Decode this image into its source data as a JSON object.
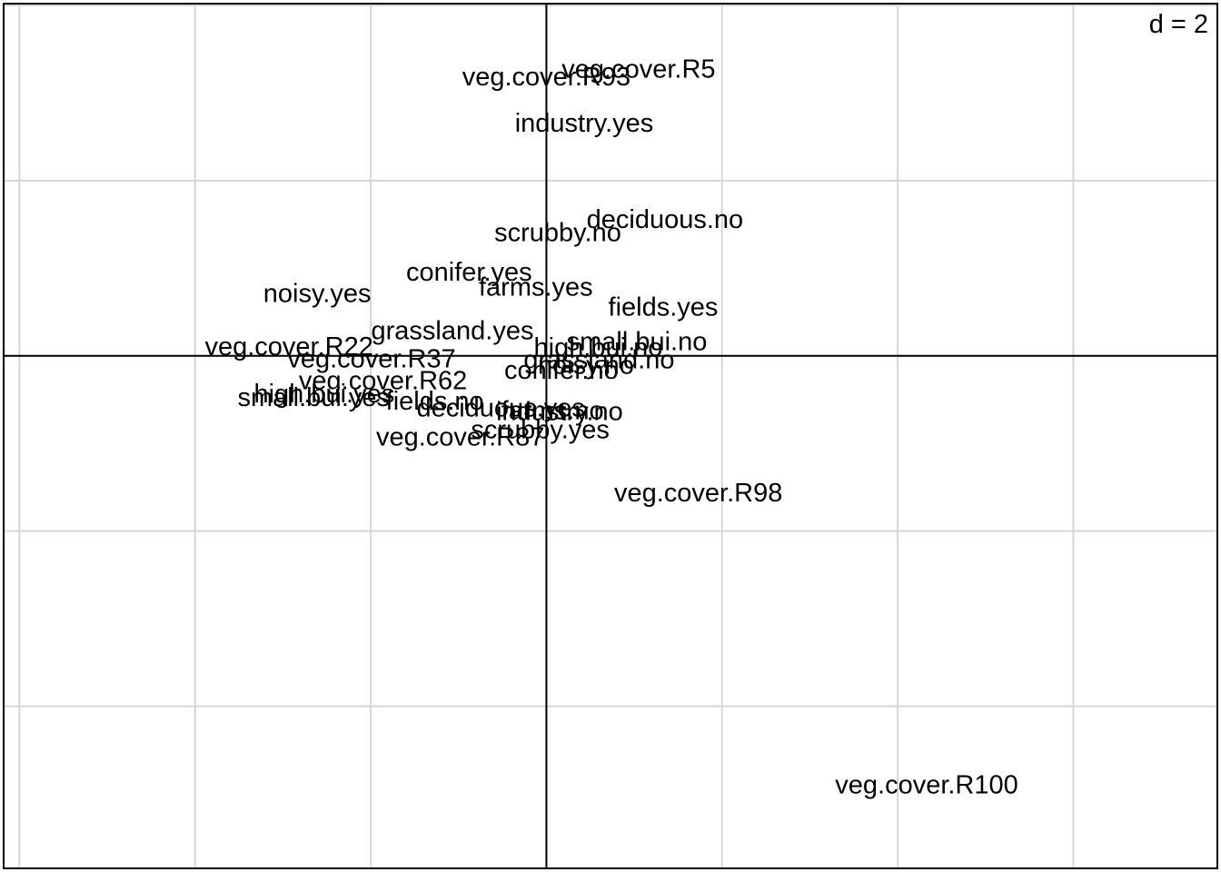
{
  "chart_data": {
    "type": "scatter",
    "title": "",
    "xlabel": "",
    "ylabel": "",
    "grid": true,
    "grid_step": 2,
    "scale_label": "d = 2",
    "xlim": [
      -6.18,
      7.64
    ],
    "ylim": [
      -5.85,
      4.02
    ],
    "points": [
      {
        "label": "veg.cover.R5",
        "x": 1.05,
        "y": 3.27
      },
      {
        "label": "veg.cover.R93",
        "x": 0.0,
        "y": 3.18
      },
      {
        "label": "industry.yes",
        "x": 0.43,
        "y": 2.65
      },
      {
        "label": "deciduous.no",
        "x": 1.35,
        "y": 1.55
      },
      {
        "label": "scrubby.no",
        "x": 0.13,
        "y": 1.4
      },
      {
        "label": "conifer.yes",
        "x": -0.88,
        "y": 0.95
      },
      {
        "label": "farms.yes",
        "x": -0.12,
        "y": 0.78
      },
      {
        "label": "noisy.yes",
        "x": -2.61,
        "y": 0.71
      },
      {
        "label": "fields.yes",
        "x": 1.33,
        "y": 0.55
      },
      {
        "label": "grassland.yes",
        "x": -1.07,
        "y": 0.28
      },
      {
        "label": "small.bui.no",
        "x": 1.03,
        "y": 0.16
      },
      {
        "label": "high.bui.no",
        "x": 0.59,
        "y": 0.09
      },
      {
        "label": "veg.cover.R22",
        "x": -2.93,
        "y": 0.1
      },
      {
        "label": "veg.cover.R37",
        "x": -1.99,
        "y": -0.04
      },
      {
        "label": "grassland.no",
        "x": 0.6,
        "y": -0.05
      },
      {
        "label": "noisy.no",
        "x": 0.45,
        "y": -0.11
      },
      {
        "label": "conifer.no",
        "x": 0.17,
        "y": -0.17
      },
      {
        "label": "veg.cover.R62",
        "x": -1.86,
        "y": -0.29
      },
      {
        "label": "high.bui.yes",
        "x": -2.53,
        "y": -0.44
      },
      {
        "label": "small.bui.yes",
        "x": -2.65,
        "y": -0.48
      },
      {
        "label": "fields.no",
        "x": -1.27,
        "y": -0.52
      },
      {
        "label": "deciduous.yes",
        "x": -0.52,
        "y": -0.6
      },
      {
        "label": "farms.no",
        "x": 0.07,
        "y": -0.63
      },
      {
        "label": "industry.no",
        "x": 0.15,
        "y": -0.64
      },
      {
        "label": "scrubby.yes",
        "x": -0.07,
        "y": -0.85
      },
      {
        "label": "veg.cover.R87",
        "x": -0.98,
        "y": -0.93
      },
      {
        "label": "veg.cover.R98",
        "x": 1.73,
        "y": -1.57
      },
      {
        "label": "veg.cover.R100",
        "x": 4.33,
        "y": -4.9
      }
    ]
  }
}
